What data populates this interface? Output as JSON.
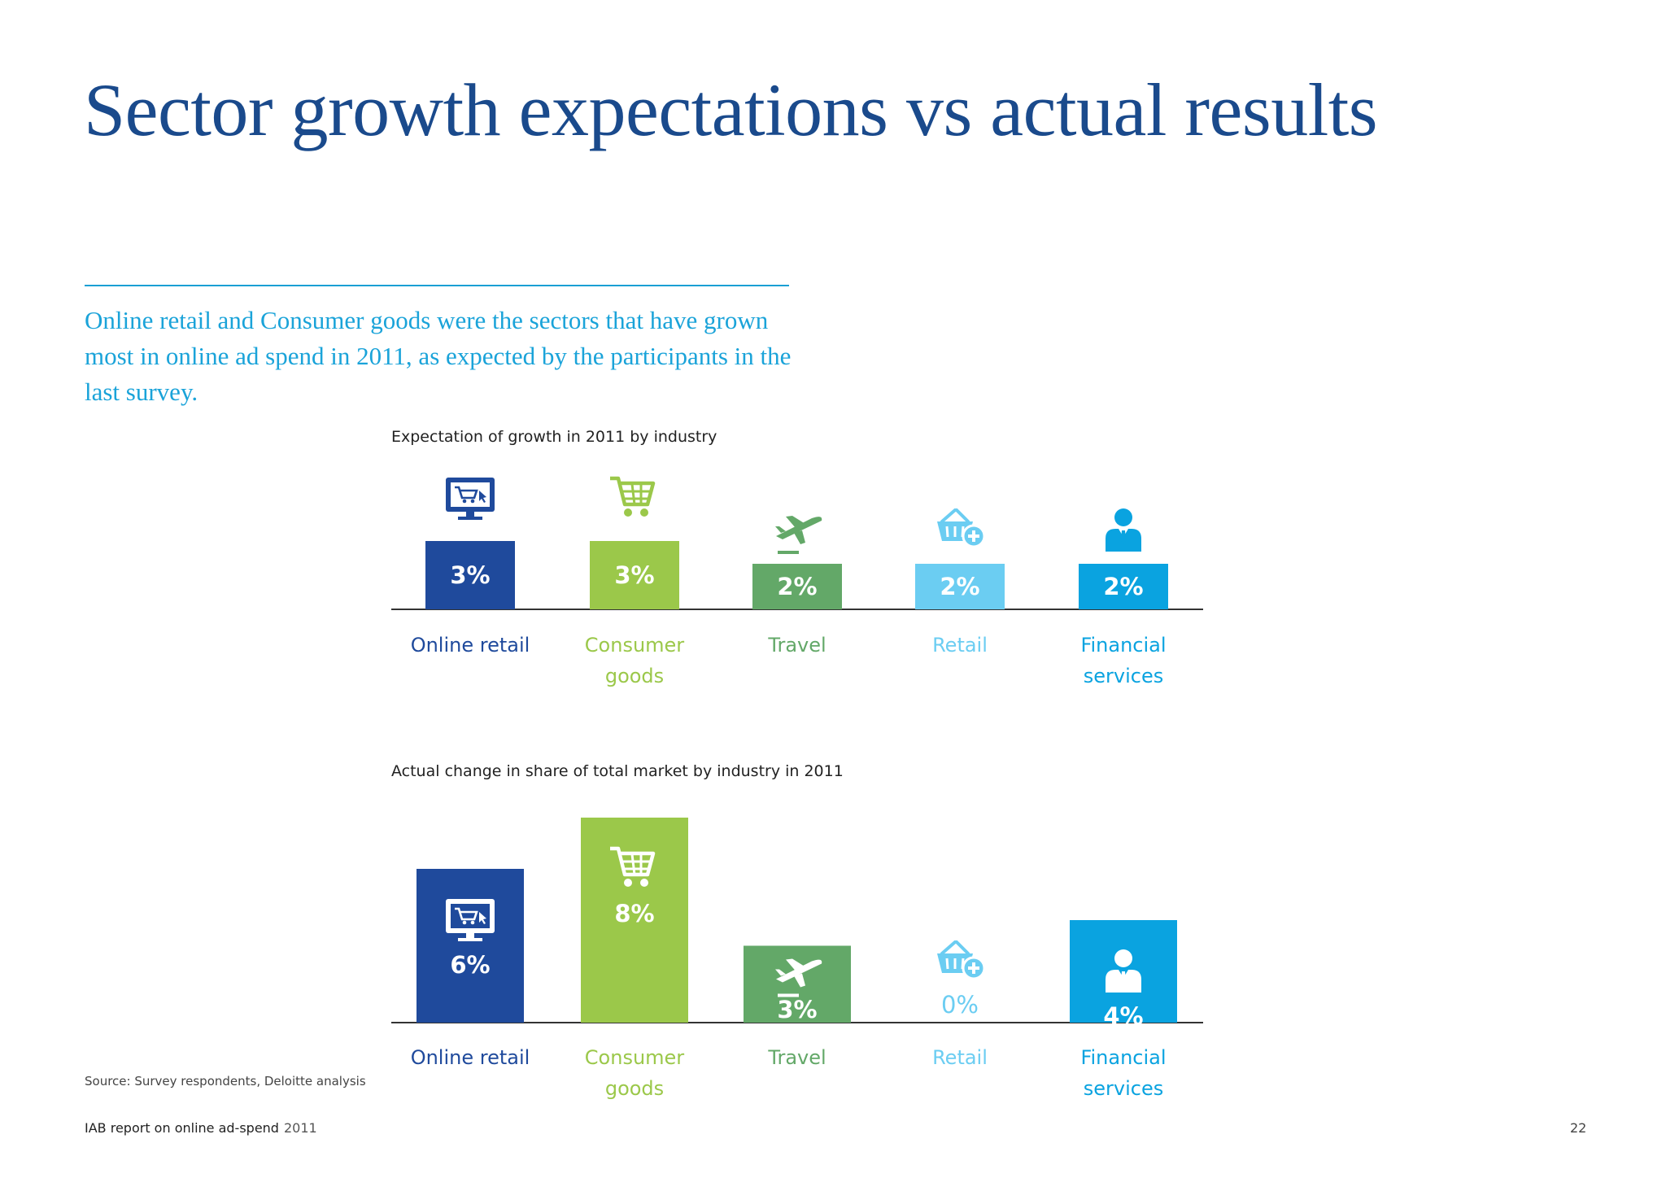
{
  "page": {
    "title": "Sector growth expectations vs actual results",
    "intro": "Online retail and Consumer goods were the sectors that have grown most in online ad spend in 2011, as expected by the participants in the last survey.",
    "source": "Source: Survey respondents, Deloitte analysis",
    "footer": {
      "report": "IAB report on online ad-spend",
      "year": "2011",
      "page_number": "22"
    }
  },
  "chart_data": [
    {
      "type": "bar",
      "title": "Expectation of growth in 2011 by industry",
      "categories": [
        "Online retail",
        "Consumer goods",
        "Travel",
        "Retail",
        "Financial services"
      ],
      "values": [
        3,
        3,
        2,
        2,
        2
      ],
      "value_labels": [
        "3%",
        "3%",
        "2%",
        "2%",
        "2%"
      ],
      "unit": "%",
      "colors": [
        "#1f4a9c",
        "#9bc84a",
        "#63a868",
        "#6bcdf2",
        "#0aa3e0"
      ],
      "icons": [
        "shopping-monitor-icon",
        "shopping-cart-icon",
        "airplane-icon",
        "basket-plus-icon",
        "businessperson-icon"
      ],
      "grid": false,
      "legend": "none"
    },
    {
      "type": "bar",
      "title": "Actual change in share of total market by industry in 2011",
      "categories": [
        "Online retail",
        "Consumer goods",
        "Travel",
        "Retail",
        "Financial services"
      ],
      "values": [
        6,
        8,
        3,
        0,
        4
      ],
      "value_labels": [
        "6%",
        "8%",
        "3%",
        "0%",
        "4%"
      ],
      "unit": "%",
      "colors": [
        "#1f4a9c",
        "#9bc84a",
        "#63a868",
        "#6bcdf2",
        "#0aa3e0"
      ],
      "icons": [
        "shopping-monitor-icon",
        "shopping-cart-icon",
        "airplane-icon",
        "basket-plus-icon",
        "businessperson-icon"
      ],
      "grid": false,
      "legend": "none"
    }
  ]
}
